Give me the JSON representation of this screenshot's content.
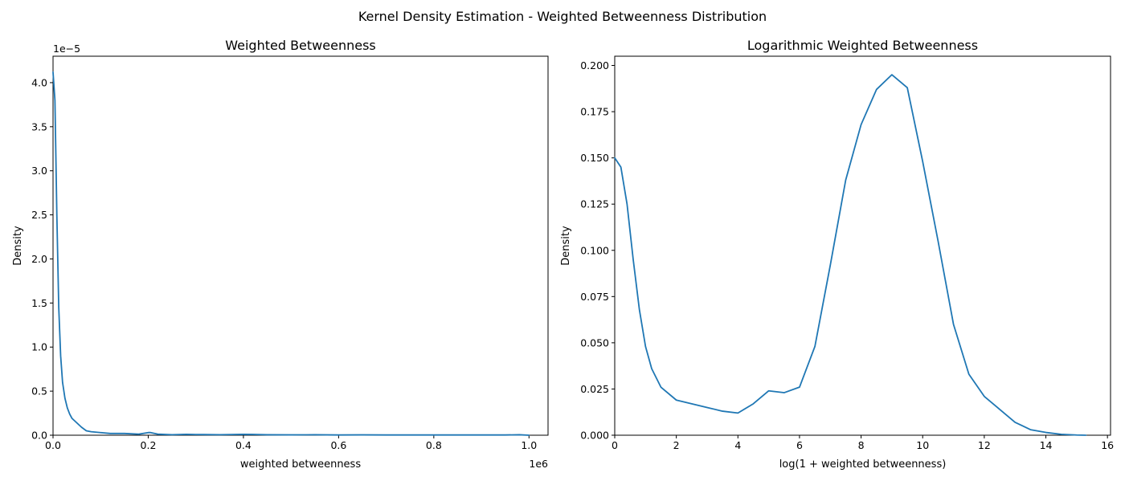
{
  "figure": {
    "suptitle": "Kernel Density Estimation - Weighted Betweenness Distribution"
  },
  "chart_data": [
    {
      "type": "line",
      "title": "Weighted Betweenness",
      "xlabel": "weighted betweenness",
      "ylabel": "Density",
      "x_offset_label": "1e6",
      "y_offset_label": "1e−5",
      "xlim": [
        0,
        1040000
      ],
      "ylim": [
        0,
        4.3
      ],
      "x_ticks": [
        0,
        200000,
        400000,
        600000,
        800000,
        1000000
      ],
      "x_tick_labels": [
        "0.0",
        "0.2",
        "0.4",
        "0.6",
        "0.8",
        "1.0"
      ],
      "y_ticks": [
        0,
        0.5,
        1.0,
        1.5,
        2.0,
        2.5,
        3.0,
        3.5,
        4.0
      ],
      "y_tick_labels": [
        "0.0",
        "0.5",
        "1.0",
        "1.5",
        "2.0",
        "2.5",
        "3.0",
        "3.5",
        "4.0"
      ],
      "color": "#1f77b4",
      "grid": false,
      "series": [
        {
          "x": [
            0,
            4000,
            8000,
            12000,
            16000,
            20000,
            25000,
            30000,
            35000,
            40000,
            50000,
            60000,
            70000,
            80000,
            100000,
            120000,
            150000,
            180000,
            200000,
            205000,
            220000,
            250000,
            280000,
            300000,
            350000,
            400000,
            420000,
            450000,
            500000,
            550000,
            600000,
            650000,
            700000,
            750000,
            800000,
            850000,
            900000,
            950000,
            980000,
            1000000
          ],
          "y": [
            4.12,
            3.8,
            2.5,
            1.45,
            0.9,
            0.6,
            0.42,
            0.31,
            0.24,
            0.19,
            0.14,
            0.09,
            0.05,
            0.04,
            0.03,
            0.02,
            0.02,
            0.012,
            0.03,
            0.03,
            0.012,
            0.006,
            0.01,
            0.008,
            0.006,
            0.01,
            0.009,
            0.005,
            0.004,
            0.005,
            0.003,
            0.004,
            0.003,
            0.003,
            0.003,
            0.003,
            0.003,
            0.003,
            0.005,
            0.0
          ]
        }
      ]
    },
    {
      "type": "line",
      "title": "Logarithmic Weighted Betweenness",
      "xlabel": "log(1 + weighted betweenness)",
      "ylabel": "Density",
      "xlim": [
        0,
        16.1
      ],
      "ylim": [
        0,
        0.205
      ],
      "x_ticks": [
        0,
        2,
        4,
        6,
        8,
        10,
        12,
        14,
        16
      ],
      "x_tick_labels": [
        "0",
        "2",
        "4",
        "6",
        "8",
        "10",
        "12",
        "14",
        "16"
      ],
      "y_ticks": [
        0,
        0.025,
        0.05,
        0.075,
        0.1,
        0.125,
        0.15,
        0.175,
        0.2
      ],
      "y_tick_labels": [
        "0.000",
        "0.025",
        "0.050",
        "0.075",
        "0.100",
        "0.125",
        "0.150",
        "0.175",
        "0.200"
      ],
      "color": "#1f77b4",
      "grid": false,
      "series": [
        {
          "x": [
            0,
            0.2,
            0.4,
            0.6,
            0.8,
            1.0,
            1.2,
            1.5,
            2.0,
            2.5,
            3.0,
            3.5,
            4.0,
            4.5,
            5.0,
            5.5,
            6.0,
            6.5,
            7.0,
            7.5,
            8.0,
            8.5,
            9.0,
            9.5,
            10.0,
            10.5,
            11.0,
            11.5,
            12.0,
            12.5,
            13.0,
            13.5,
            14.0,
            14.5,
            15.0,
            15.3
          ],
          "y": [
            0.15,
            0.145,
            0.125,
            0.095,
            0.068,
            0.048,
            0.036,
            0.026,
            0.019,
            0.017,
            0.015,
            0.013,
            0.012,
            0.017,
            0.024,
            0.023,
            0.026,
            0.048,
            0.092,
            0.138,
            0.168,
            0.187,
            0.195,
            0.188,
            0.148,
            0.105,
            0.06,
            0.033,
            0.021,
            0.014,
            0.007,
            0.003,
            0.0015,
            0.0005,
            0.0001,
            0.0
          ]
        }
      ]
    }
  ]
}
